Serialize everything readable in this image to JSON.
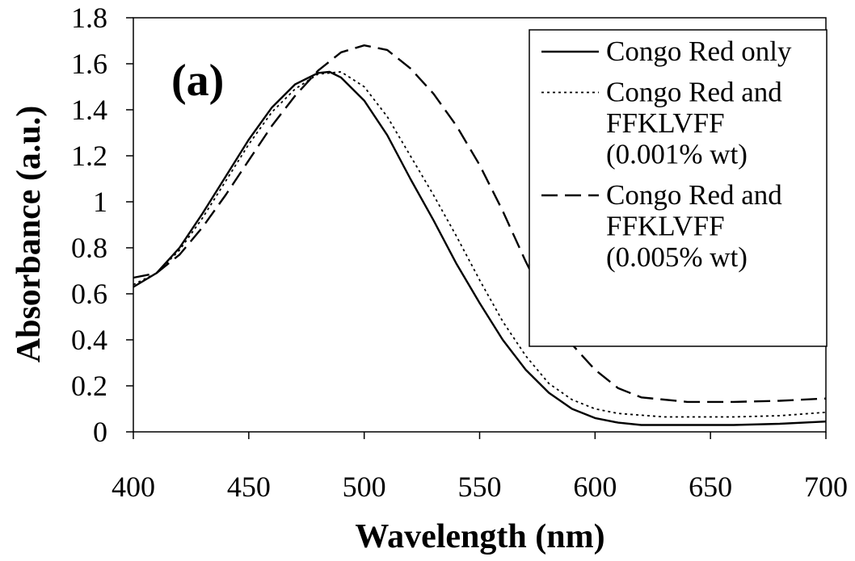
{
  "chart_data": {
    "type": "line",
    "panel_label": "(a)",
    "xlabel": "Wavelength (nm)",
    "ylabel": "Absorbance (a.u.)",
    "xlim": [
      400,
      700
    ],
    "ylim": [
      0,
      1.8
    ],
    "xticks": [
      400,
      450,
      500,
      550,
      600,
      650,
      700
    ],
    "yticks": [
      "0",
      "0.2",
      "0.4",
      "0.6",
      "0.8",
      "1",
      "1.2",
      "1.4",
      "1.6",
      "1.8"
    ],
    "grid": false,
    "legend_position": "top-right",
    "series": [
      {
        "name": "Congo Red only",
        "legend_lines": [
          "Congo Red only"
        ],
        "style": "solid",
        "color": "#000000",
        "points": [
          [
            400,
            0.63
          ],
          [
            410,
            0.69
          ],
          [
            420,
            0.8
          ],
          [
            430,
            0.95
          ],
          [
            440,
            1.11
          ],
          [
            450,
            1.27
          ],
          [
            460,
            1.41
          ],
          [
            470,
            1.51
          ],
          [
            480,
            1.56
          ],
          [
            485,
            1.565
          ],
          [
            490,
            1.54
          ],
          [
            500,
            1.44
          ],
          [
            510,
            1.29
          ],
          [
            520,
            1.1
          ],
          [
            530,
            0.92
          ],
          [
            540,
            0.73
          ],
          [
            550,
            0.56
          ],
          [
            560,
            0.4
          ],
          [
            570,
            0.27
          ],
          [
            580,
            0.17
          ],
          [
            590,
            0.1
          ],
          [
            600,
            0.06
          ],
          [
            610,
            0.04
          ],
          [
            620,
            0.03
          ],
          [
            640,
            0.03
          ],
          [
            660,
            0.03
          ],
          [
            680,
            0.035
          ],
          [
            700,
            0.045
          ]
        ]
      },
      {
        "name": "Congo Red and FFKLVFF (0.001% wt)",
        "legend_lines": [
          "Congo Red and",
          "FFKLVFF",
          "(0.001% wt)"
        ],
        "style": "dotted",
        "color": "#000000",
        "points": [
          [
            400,
            0.64
          ],
          [
            410,
            0.69
          ],
          [
            420,
            0.79
          ],
          [
            430,
            0.93
          ],
          [
            440,
            1.09
          ],
          [
            450,
            1.25
          ],
          [
            460,
            1.39
          ],
          [
            470,
            1.49
          ],
          [
            480,
            1.555
          ],
          [
            490,
            1.565
          ],
          [
            500,
            1.5
          ],
          [
            510,
            1.37
          ],
          [
            520,
            1.2
          ],
          [
            530,
            1.03
          ],
          [
            540,
            0.85
          ],
          [
            550,
            0.66
          ],
          [
            560,
            0.48
          ],
          [
            570,
            0.33
          ],
          [
            580,
            0.21
          ],
          [
            590,
            0.14
          ],
          [
            600,
            0.1
          ],
          [
            610,
            0.08
          ],
          [
            630,
            0.065
          ],
          [
            660,
            0.065
          ],
          [
            680,
            0.07
          ],
          [
            700,
            0.085
          ]
        ]
      },
      {
        "name": "Congo Red and FFKLVFF (0.005% wt)",
        "legend_lines": [
          "Congo Red and",
          "FFKLVFF",
          "(0.005% wt)"
        ],
        "style": "dashed",
        "color": "#000000",
        "points": [
          [
            400,
            0.67
          ],
          [
            410,
            0.69
          ],
          [
            420,
            0.77
          ],
          [
            430,
            0.89
          ],
          [
            440,
            1.03
          ],
          [
            450,
            1.18
          ],
          [
            460,
            1.33
          ],
          [
            470,
            1.46
          ],
          [
            480,
            1.57
          ],
          [
            490,
            1.65
          ],
          [
            500,
            1.68
          ],
          [
            510,
            1.66
          ],
          [
            520,
            1.58
          ],
          [
            530,
            1.47
          ],
          [
            540,
            1.33
          ],
          [
            550,
            1.16
          ],
          [
            560,
            0.96
          ],
          [
            570,
            0.74
          ],
          [
            580,
            0.54
          ],
          [
            590,
            0.38
          ],
          [
            600,
            0.27
          ],
          [
            610,
            0.19
          ],
          [
            620,
            0.15
          ],
          [
            640,
            0.13
          ],
          [
            660,
            0.13
          ],
          [
            680,
            0.135
          ],
          [
            700,
            0.145
          ]
        ]
      }
    ]
  }
}
